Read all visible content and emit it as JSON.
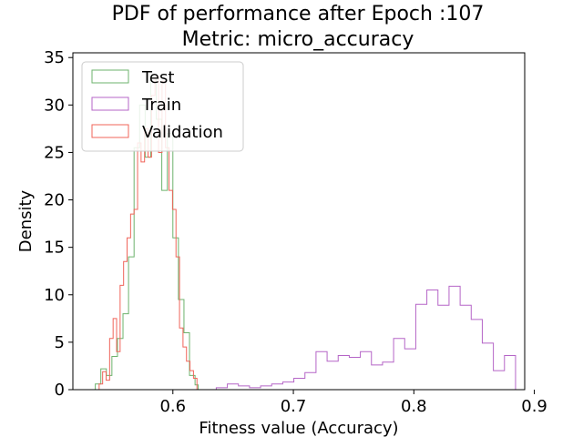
{
  "chart_data": {
    "type": "histogram-step",
    "title": "PDF of performance after Epoch :107",
    "subtitle": "Metric: micro_accuracy",
    "xlabel": "Fitness value (Accuracy)",
    "ylabel": "Density",
    "xlim": [
      0.517,
      0.892
    ],
    "ylim": [
      0,
      35.5
    ],
    "xticks": [
      0.6,
      0.7,
      0.8,
      0.9
    ],
    "xtick_labels": [
      "0.6",
      "0.7",
      "0.8",
      "0.9"
    ],
    "yticks": [
      0,
      5,
      10,
      15,
      20,
      25,
      30,
      35
    ],
    "ytick_labels": [
      "0",
      "5",
      "10",
      "15",
      "20",
      "25",
      "30",
      "35"
    ],
    "grid": false,
    "legend_position": "top-left",
    "legend": [
      {
        "label": "Test",
        "color": "#6db36d"
      },
      {
        "label": "Train",
        "color": "#b565c7"
      },
      {
        "label": "Validation",
        "color": "#f0645a"
      }
    ],
    "series": [
      {
        "name": "Test",
        "color": "#6db36d",
        "x": [
          0.531,
          0.5356,
          0.5402,
          0.5448,
          0.5494,
          0.554,
          0.5586,
          0.5632,
          0.5678,
          0.5724,
          0.577,
          0.5816,
          0.5862,
          0.5908,
          0.5954,
          0.6,
          0.6046,
          0.6092,
          0.6138,
          0.6184,
          0.621
        ],
        "y": [
          0,
          0.6,
          2.2,
          1.5,
          3.5,
          5.4,
          8.0,
          14.0,
          25.5,
          30.0,
          24.5,
          33.0,
          28.5,
          21.0,
          27.0,
          16.0,
          9.5,
          6.0,
          1.5,
          0.5
        ]
      },
      {
        "name": "Train",
        "color": "#b565c7",
        "x": [
          0.636,
          0.6452,
          0.6544,
          0.6636,
          0.6728,
          0.682,
          0.6912,
          0.7004,
          0.7096,
          0.7188,
          0.728,
          0.7372,
          0.7464,
          0.7556,
          0.7648,
          0.774,
          0.7832,
          0.7924,
          0.8016,
          0.8108,
          0.82,
          0.8292,
          0.8384,
          0.8476,
          0.8568,
          0.866,
          0.8752,
          0.8844
        ],
        "y": [
          0.2,
          0.6,
          0.4,
          0.2,
          0.4,
          0.6,
          0.8,
          1.2,
          1.8,
          4.0,
          3.0,
          3.6,
          3.4,
          4.0,
          2.6,
          2.9,
          5.4,
          4.3,
          9.0,
          10.5,
          8.9,
          10.9,
          8.9,
          7.4,
          4.9,
          2.0,
          3.6
        ]
      },
      {
        "name": "Validation",
        "color": "#f0645a",
        "x": [
          0.5388,
          0.5417,
          0.5446,
          0.5475,
          0.5504,
          0.5533,
          0.5562,
          0.5591,
          0.562,
          0.5649,
          0.5678,
          0.5707,
          0.5736,
          0.5765,
          0.5794,
          0.5823,
          0.5852,
          0.5881,
          0.591,
          0.5939,
          0.5968,
          0.5997,
          0.6026,
          0.6055,
          0.6084,
          0.6113,
          0.6142,
          0.6171,
          0.62
        ],
        "y": [
          0.6,
          1.9,
          1.0,
          5.4,
          7.5,
          4.0,
          11.0,
          13.5,
          16.0,
          18.5,
          19.0,
          26.0,
          24.0,
          27.5,
          24.5,
          31.0,
          33.0,
          25.0,
          32.5,
          25.5,
          21.0,
          19.0,
          14.0,
          6.5,
          4.5,
          3.0,
          2.0,
          1.2
        ]
      }
    ]
  }
}
